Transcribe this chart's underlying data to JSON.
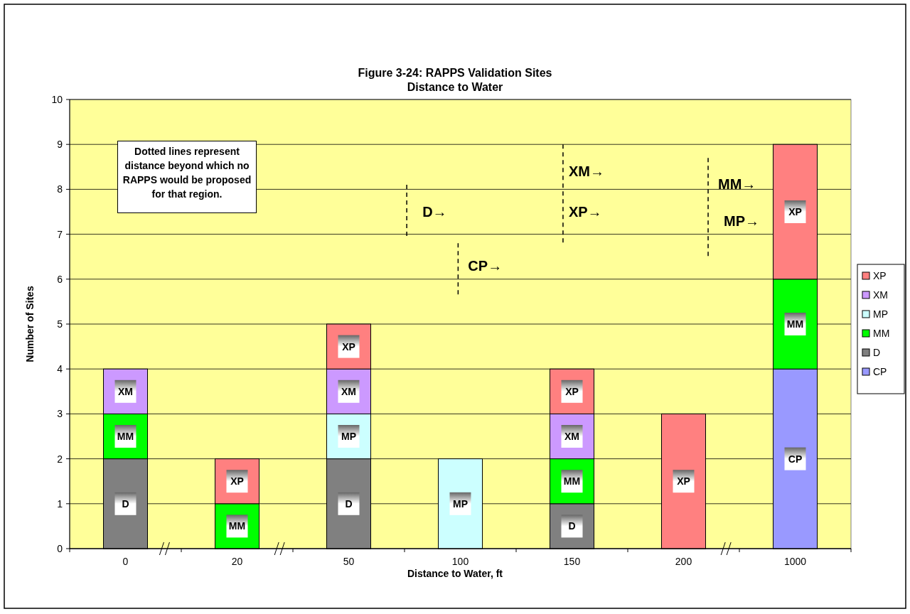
{
  "chart_data": {
    "type": "bar",
    "stacked": true,
    "title": "Figure 3-24:  RAPPS Validation Sites",
    "subtitle": "Distance to Water",
    "xlabel": "Distance to Water, ft",
    "ylabel": "Number of Sites",
    "categories": [
      "0",
      "20",
      "50",
      "100",
      "150",
      "200",
      "1000"
    ],
    "series": [
      {
        "name": "CP",
        "color": "#9999ff",
        "values": [
          0,
          0,
          0,
          0,
          0,
          0,
          4
        ]
      },
      {
        "name": "D",
        "color": "#808080",
        "values": [
          2,
          0,
          2,
          0,
          1,
          0,
          0
        ]
      },
      {
        "name": "MM",
        "color": "#00ff00",
        "values": [
          1,
          1,
          0,
          0,
          1,
          0,
          2
        ]
      },
      {
        "name": "MP",
        "color": "#ccffff",
        "values": [
          0,
          0,
          1,
          2,
          0,
          0,
          0
        ]
      },
      {
        "name": "XM",
        "color": "#cc99ff",
        "values": [
          1,
          0,
          1,
          0,
          1,
          0,
          0
        ]
      },
      {
        "name": "XP",
        "color": "#ff8080",
        "values": [
          0,
          1,
          1,
          0,
          1,
          3,
          3
        ]
      }
    ],
    "ylim": [
      0,
      10
    ],
    "yticks": [
      0,
      1,
      2,
      3,
      4,
      5,
      6,
      7,
      8,
      9,
      10
    ],
    "grid": "y",
    "legend": "right",
    "annotations": [
      "Dotted lines represent distance beyond which no RAPPS would be proposed for that region.",
      "D→",
      "CP→",
      "XM→",
      "XP→",
      "MM→",
      "MP→"
    ]
  }
}
